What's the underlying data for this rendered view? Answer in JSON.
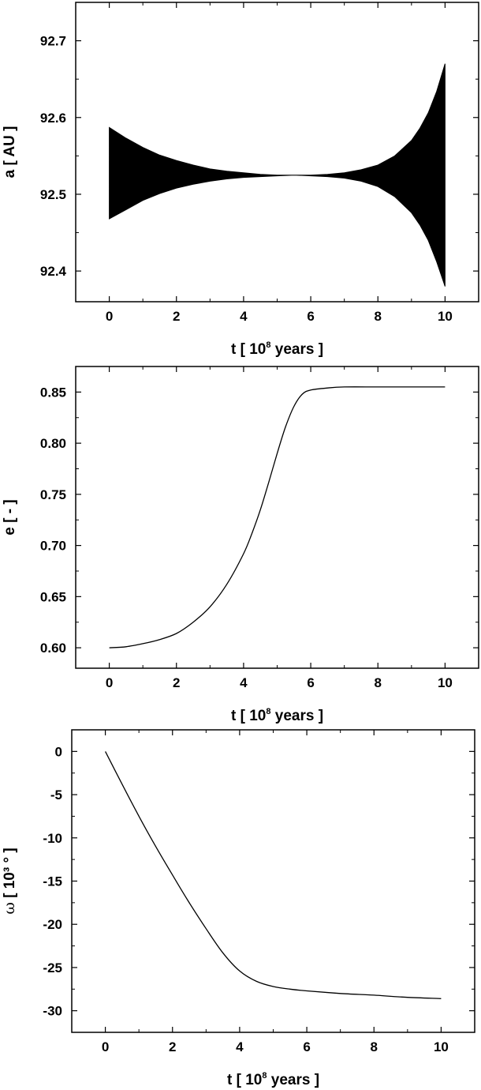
{
  "chart_data": [
    {
      "type": "area",
      "xlabel": {
        "pre": "t [ 10",
        "sup": "8",
        "post": " years ]"
      },
      "ylabel": {
        "pre": "a [ AU ]",
        "sup": "",
        "post": ""
      },
      "xlim": [
        -1,
        11
      ],
      "ylim": [
        92.36,
        92.75
      ],
      "xticks": [
        0,
        2,
        4,
        6,
        8,
        10
      ],
      "yticks": [
        92.4,
        92.5,
        92.6,
        92.7
      ],
      "ytick_decimals": 1,
      "color": "#000000",
      "series": [
        {
          "x": [
            0,
            0.5,
            1,
            1.5,
            2,
            2.5,
            3,
            3.5,
            4,
            4.5,
            5,
            5.5,
            6,
            6.5,
            7,
            7.5,
            8,
            8.5,
            9,
            9.25,
            9.5,
            9.75,
            10
          ],
          "upper": [
            92.587,
            92.573,
            92.561,
            92.551,
            92.544,
            92.538,
            92.533,
            92.53,
            92.528,
            92.526,
            92.525,
            92.525,
            92.525,
            92.526,
            92.528,
            92.532,
            92.538,
            92.55,
            92.57,
            92.586,
            92.606,
            92.634,
            92.67
          ],
          "lower": [
            92.468,
            92.48,
            92.492,
            92.501,
            92.508,
            92.513,
            92.517,
            92.52,
            92.522,
            92.523,
            92.524,
            92.525,
            92.524,
            92.523,
            92.521,
            92.517,
            92.51,
            92.497,
            92.476,
            92.46,
            92.44,
            92.412,
            92.38
          ]
        }
      ]
    },
    {
      "type": "line",
      "xlabel": {
        "pre": "t [ 10",
        "sup": "8",
        "post": " years ]"
      },
      "ylabel": {
        "pre": "e [ - ]",
        "sup": "",
        "post": ""
      },
      "xlim": [
        -1,
        11
      ],
      "ylim": [
        0.58,
        0.875
      ],
      "xticks": [
        0,
        2,
        4,
        6,
        8,
        10
      ],
      "yticks": [
        0.6,
        0.65,
        0.7,
        0.75,
        0.8,
        0.85
      ],
      "ytick_decimals": 2,
      "color": "#000000",
      "series": [
        {
          "x": [
            0,
            0.5,
            1,
            1.5,
            2,
            2.5,
            3,
            3.5,
            4,
            4.25,
            4.5,
            4.75,
            5,
            5.25,
            5.5,
            5.75,
            6,
            6.5,
            7,
            8,
            9,
            10
          ],
          "y": [
            0.6,
            0.601,
            0.604,
            0.608,
            0.614,
            0.625,
            0.64,
            0.662,
            0.692,
            0.712,
            0.735,
            0.762,
            0.79,
            0.816,
            0.836,
            0.848,
            0.852,
            0.854,
            0.855,
            0.855,
            0.855,
            0.855
          ]
        }
      ]
    },
    {
      "type": "line",
      "xlabel": {
        "pre": "t [ 10",
        "sup": "8",
        "post": " years ]"
      },
      "ylabel": {
        "pre": "ω",
        "sup": "",
        "post": " [ 10³ ° ]"
      },
      "xlim": [
        -1,
        11
      ],
      "ylim": [
        -32.5,
        2.5
      ],
      "xticks": [
        0,
        2,
        4,
        6,
        8,
        10
      ],
      "yticks": [
        0,
        -5,
        -10,
        -15,
        -20,
        -25,
        -30
      ],
      "ytick_decimals": 0,
      "color": "#000000",
      "series": [
        {
          "x": [
            0,
            0.5,
            1,
            1.5,
            2,
            2.5,
            3,
            3.5,
            4,
            4.5,
            5,
            5.5,
            6,
            7,
            8,
            9,
            10
          ],
          "y": [
            0,
            -3.8,
            -7.5,
            -11.0,
            -14.3,
            -17.5,
            -20.5,
            -23.3,
            -25.4,
            -26.6,
            -27.2,
            -27.5,
            -27.7,
            -28.0,
            -28.2,
            -28.45,
            -28.6
          ]
        }
      ]
    }
  ]
}
